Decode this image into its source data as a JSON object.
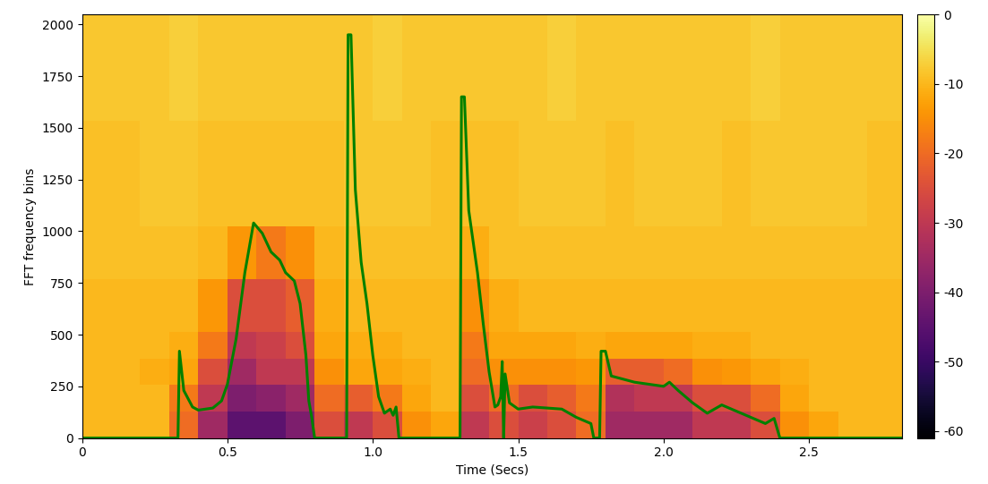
{
  "chart_data": {
    "type": "heatmap",
    "xlabel": "Time (Secs)",
    "ylabel": "FFT frequency bins",
    "xlim": [
      0,
      2.82
    ],
    "ylim": [
      0,
      2048
    ],
    "xticks": [
      0,
      0.5,
      1.0,
      1.5,
      2.0,
      2.5
    ],
    "yticks": [
      0,
      250,
      500,
      750,
      1000,
      1250,
      1500,
      1750,
      2000
    ],
    "cell_x_edges": [
      0,
      0.1,
      0.2,
      0.3,
      0.4,
      0.5,
      0.6,
      0.7,
      0.8,
      0.9,
      1.0,
      1.1,
      1.2,
      1.3,
      1.4,
      1.5,
      1.6,
      1.7,
      1.8,
      1.9,
      2.0,
      2.1,
      2.2,
      2.3,
      2.4,
      2.5,
      2.6,
      2.7,
      2.82
    ],
    "cell_y_edges": [
      0,
      128,
      256,
      384,
      512,
      768,
      1024,
      1536,
      2048
    ],
    "cells": [
      [
        -10,
        -10,
        -10,
        -20,
        -35,
        -45,
        -45,
        -40,
        -25,
        -30,
        -25,
        -15,
        -12,
        -30,
        -25,
        -28,
        -25,
        -20,
        -35,
        -35,
        -35,
        -30,
        -30,
        -25,
        -15,
        -12,
        -10,
        -10
      ],
      [
        -10,
        -10,
        -10,
        -18,
        -30,
        -40,
        -38,
        -35,
        -20,
        -22,
        -18,
        -12,
        -10,
        -25,
        -20,
        -25,
        -22,
        -18,
        -32,
        -30,
        -30,
        -25,
        -25,
        -20,
        -12,
        -10,
        -10,
        -10
      ],
      [
        -10,
        -10,
        -11,
        -12,
        -25,
        -35,
        -30,
        -30,
        -15,
        -12,
        -12,
        -11,
        -10,
        -20,
        -15,
        -15,
        -15,
        -14,
        -22,
        -22,
        -20,
        -15,
        -14,
        -12,
        -11,
        -10,
        -10,
        -10
      ],
      [
        -10,
        -10,
        -10,
        -11,
        -18,
        -30,
        -28,
        -25,
        -12,
        -11,
        -11,
        -10,
        -10,
        -18,
        -12,
        -12,
        -12,
        -11,
        -12,
        -12,
        -12,
        -11,
        -11,
        -10,
        -10,
        -10,
        -10,
        -10
      ],
      [
        -10,
        -10,
        -10,
        -10,
        -14,
        -25,
        -25,
        -22,
        -11,
        -10,
        -10,
        -10,
        -10,
        -15,
        -11,
        -10,
        -10,
        -10,
        -10,
        -10,
        -10,
        -10,
        -10,
        -10,
        -10,
        -10,
        -10,
        -10
      ],
      [
        -9,
        -9,
        -9,
        -9,
        -10,
        -14,
        -18,
        -15,
        -10,
        -9,
        -9,
        -9,
        -9,
        -11,
        -9,
        -9,
        -9,
        -9,
        -9,
        -9,
        -9,
        -9,
        -9,
        -9,
        -9,
        -9,
        -9,
        -9
      ],
      [
        -9,
        -9,
        -8,
        -8,
        -9,
        -9,
        -9,
        -9,
        -9,
        -8,
        -8,
        -8,
        -9,
        -9,
        -9,
        -8,
        -8,
        -8,
        -9,
        -8,
        -8,
        -8,
        -9,
        -8,
        -8,
        -8,
        -8,
        -9
      ],
      [
        -8,
        -8,
        -8,
        -7,
        -8,
        -8,
        -8,
        -8,
        -8,
        -8,
        -7,
        -8,
        -8,
        -8,
        -8,
        -8,
        -7,
        -8,
        -8,
        -8,
        -8,
        -8,
        -8,
        -7,
        -8,
        -8,
        -8,
        -8
      ]
    ],
    "color_range": [
      -61,
      0
    ],
    "color_ticks": [
      0,
      -10,
      -20,
      -30,
      -40,
      -50,
      -60
    ],
    "series": [
      {
        "type": "line",
        "color": "green",
        "x": [
          0,
          0.33,
          0.335,
          0.35,
          0.38,
          0.4,
          0.45,
          0.48,
          0.5,
          0.53,
          0.56,
          0.59,
          0.62,
          0.65,
          0.68,
          0.7,
          0.73,
          0.75,
          0.77,
          0.78,
          0.79,
          0.8,
          0.91,
          0.915,
          0.925,
          0.94,
          0.96,
          0.98,
          1.0,
          1.02,
          1.04,
          1.06,
          1.07,
          1.08,
          1.09,
          1.3,
          1.305,
          1.315,
          1.33,
          1.36,
          1.38,
          1.4,
          1.42,
          1.43,
          1.44,
          1.445,
          1.45,
          1.455,
          1.47,
          1.5,
          1.55,
          1.6,
          1.65,
          1.7,
          1.75,
          1.76,
          1.78,
          1.785,
          1.8,
          1.82,
          1.9,
          1.95,
          2.0,
          2.02,
          2.05,
          2.1,
          2.15,
          2.2,
          2.25,
          2.3,
          2.35,
          2.38,
          2.4,
          2.82
        ],
        "values": [
          0,
          0,
          420,
          230,
          150,
          135,
          145,
          180,
          260,
          480,
          800,
          1040,
          990,
          900,
          860,
          800,
          760,
          650,
          400,
          180,
          100,
          0,
          0,
          1950,
          1950,
          1200,
          850,
          650,
          400,
          200,
          120,
          140,
          110,
          150,
          0,
          0,
          1650,
          1650,
          1100,
          800,
          550,
          320,
          150,
          160,
          200,
          370,
          0,
          310,
          170,
          140,
          150,
          145,
          140,
          100,
          70,
          0,
          0,
          420,
          420,
          300,
          270,
          260,
          250,
          270,
          230,
          170,
          120,
          160,
          130,
          100,
          70,
          95,
          0,
          0
        ]
      }
    ]
  }
}
